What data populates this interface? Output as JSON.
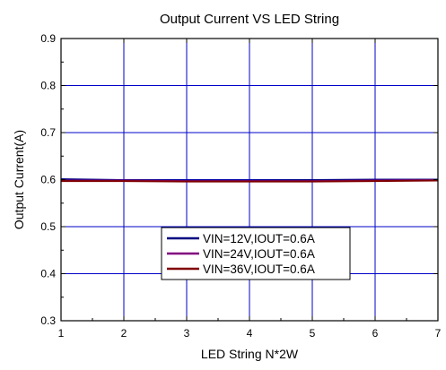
{
  "chart_data": {
    "type": "line",
    "title": "Output Current VS LED String",
    "xlabel": "LED String N*2W",
    "ylabel": "Output Current(A)",
    "xlim": [
      1,
      7
    ],
    "ylim": [
      0.3,
      0.9
    ],
    "xticks": [
      "1",
      "2",
      "3",
      "4",
      "5",
      "6",
      "7"
    ],
    "yticks": [
      "0.3",
      "0.4",
      "0.5",
      "0.6",
      "0.7",
      "0.8",
      "0.9"
    ],
    "grid": true,
    "legend_position": "center",
    "x": [
      1,
      2,
      3,
      4,
      5,
      6,
      7
    ],
    "series": [
      {
        "name": "VIN=12V,IOUT=0.6A",
        "color": "#000080",
        "values": [
          0.601,
          0.599,
          0.598,
          0.598,
          0.599,
          0.6,
          0.6
        ]
      },
      {
        "name": "VIN=24V,IOUT=0.6A",
        "color": "#800080",
        "values": [
          0.598,
          0.598,
          0.597,
          0.597,
          0.597,
          0.598,
          0.599
        ]
      },
      {
        "name": "VIN=36V,IOUT=0.6A",
        "color": "#800000",
        "values": [
          0.597,
          0.597,
          0.596,
          0.596,
          0.596,
          0.597,
          0.598
        ]
      }
    ],
    "colors": {
      "grid": "#0000c8",
      "axis": "#000000"
    }
  }
}
